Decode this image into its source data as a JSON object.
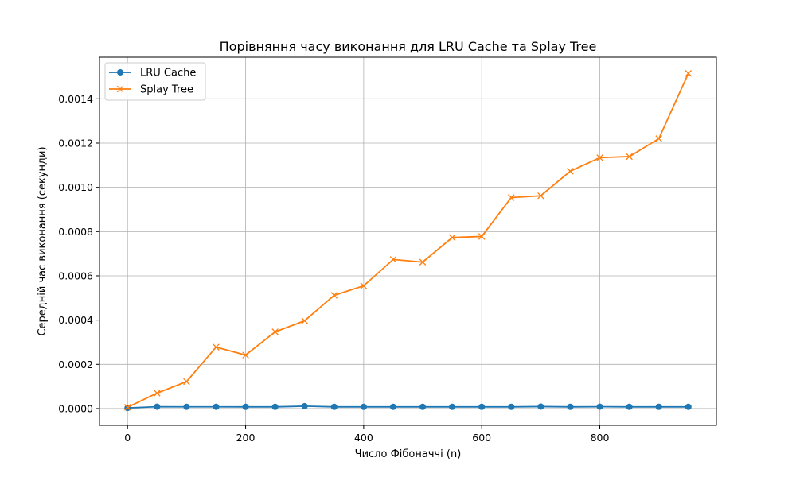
{
  "chart_data": {
    "type": "line",
    "title": "Порівняння часу виконання для LRU Cache та Splay Tree",
    "xlabel": "Число Фібоначчі (n)",
    "ylabel": "Середній час виконання (секунди)",
    "xlim": [
      -47.5,
      997.5
    ],
    "ylim": [
      -7.56e-05,
      0.001588
    ],
    "x_ticks": [
      0,
      200,
      400,
      600,
      800
    ],
    "x_tick_labels": [
      "0",
      "200",
      "400",
      "600",
      "800"
    ],
    "y_ticks": [
      0,
      0.0002,
      0.0004,
      0.0006,
      0.0008,
      0.001,
      0.0012,
      0.0014
    ],
    "y_tick_labels": [
      "0.0000",
      "0.0002",
      "0.0004",
      "0.0006",
      "0.0008",
      "0.0010",
      "0.0012",
      "0.0014"
    ],
    "grid": true,
    "legend_position": "top-left",
    "x": [
      0,
      50,
      100,
      150,
      200,
      250,
      300,
      350,
      400,
      450,
      500,
      550,
      600,
      650,
      700,
      750,
      800,
      850,
      900,
      950
    ],
    "series": [
      {
        "name": "LRU Cache",
        "color": "#1f77b4",
        "marker": "circle",
        "values": [
          3e-06,
          8.5e-06,
          8e-06,
          8e-06,
          7.8e-06,
          7.8e-06,
          1.1e-05,
          7.8e-06,
          7.8e-06,
          7.8e-06,
          7.8e-06,
          7.8e-06,
          7.8e-06,
          7.8e-06,
          9e-06,
          7.8e-06,
          8.5e-06,
          7.8e-06,
          7.8e-06,
          7.8e-06
        ]
      },
      {
        "name": "Splay Tree",
        "color": "#ff7f0e",
        "marker": "x",
        "values": [
          6e-06,
          7e-05,
          0.000122,
          0.000278,
          0.000242,
          0.000347,
          0.000397,
          0.000512,
          0.000555,
          0.000674,
          0.000662,
          0.000773,
          0.000778,
          0.000954,
          0.000962,
          0.001073,
          0.001134,
          0.001139,
          0.00122,
          0.001515
        ]
      }
    ]
  }
}
